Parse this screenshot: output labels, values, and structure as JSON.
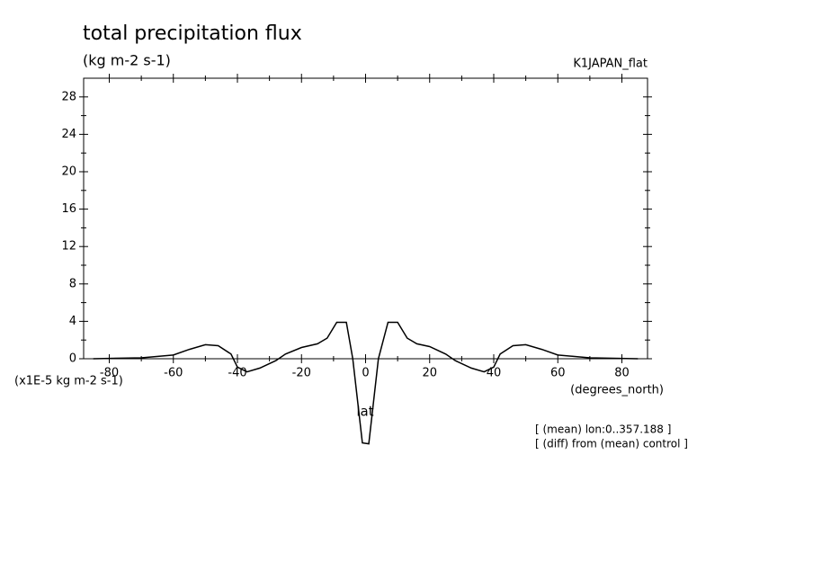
{
  "chart_data": {
    "type": "line",
    "title": "total precipitation flux",
    "subtitle": "(kg m-2 s-1)",
    "dataset": "K1JAPAN_flat",
    "y_unit": "(x1E-5 kg m-2 s-1)",
    "x_unit": "(degrees_north)",
    "x_label": "lat",
    "annotations": [
      "[ (mean) lon:0..357.188 ]",
      "[ (diff) from (mean) control ]"
    ],
    "x": [
      -85,
      -70,
      -60,
      -55,
      -50,
      -46,
      -42,
      -40,
      -37,
      -33,
      -28,
      -25,
      -20,
      -15,
      -12,
      -9,
      -6,
      -4,
      -1,
      1,
      4,
      7,
      10,
      13,
      16,
      20,
      25,
      28,
      33,
      37,
      40,
      42,
      46,
      50,
      55,
      60,
      70,
      85
    ],
    "series": [
      {
        "color": "#000000",
        "values": [
          0,
          0.1,
          0.4,
          1.0,
          1.5,
          1.4,
          0.5,
          -0.9,
          -1.4,
          -1.0,
          -0.2,
          0.5,
          1.2,
          1.6,
          2.2,
          3.9,
          3.9,
          0,
          -9,
          -9.1,
          0,
          3.9,
          3.9,
          2.2,
          1.6,
          1.3,
          0.5,
          -0.2,
          -1.0,
          -1.4,
          -0.9,
          0.5,
          1.4,
          1.5,
          1.0,
          0.4,
          0.1,
          0
        ]
      }
    ],
    "xlim": [
      -88,
      88
    ],
    "ylim": [
      0,
      30
    ],
    "xticks": [
      -80,
      -60,
      -40,
      -20,
      0,
      20,
      40,
      60,
      80
    ],
    "yticks": [
      0,
      4,
      8,
      12,
      16,
      20,
      24,
      28
    ]
  }
}
